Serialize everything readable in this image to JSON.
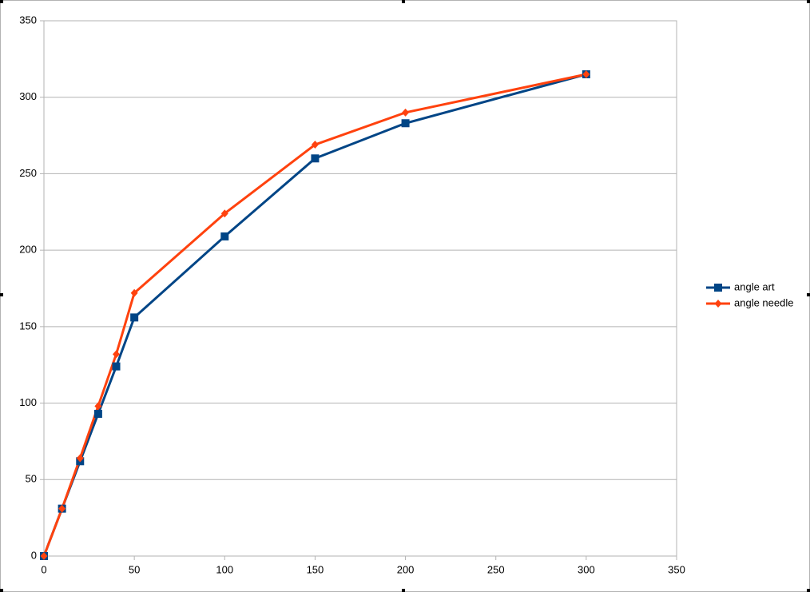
{
  "chart_data": {
    "type": "line",
    "x": [
      0,
      10,
      20,
      30,
      40,
      50,
      100,
      150,
      200,
      300
    ],
    "series": [
      {
        "name": "angle art",
        "color": "#004586",
        "marker": "square",
        "values": [
          0,
          31,
          62,
          93,
          124,
          156,
          209,
          260,
          283,
          315
        ]
      },
      {
        "name": "angle needle",
        "color": "#ff420e",
        "marker": "diamond",
        "values": [
          0,
          31,
          64,
          98,
          132,
          172,
          224,
          269,
          290,
          315
        ]
      }
    ],
    "xlim": [
      0,
      350
    ],
    "xticks": [
      0,
      50,
      100,
      150,
      200,
      250,
      300,
      350
    ],
    "ylim": [
      0,
      350
    ],
    "yticks": [
      0,
      50,
      100,
      150,
      200,
      250,
      300,
      350
    ],
    "grid": true,
    "legend": "right"
  }
}
